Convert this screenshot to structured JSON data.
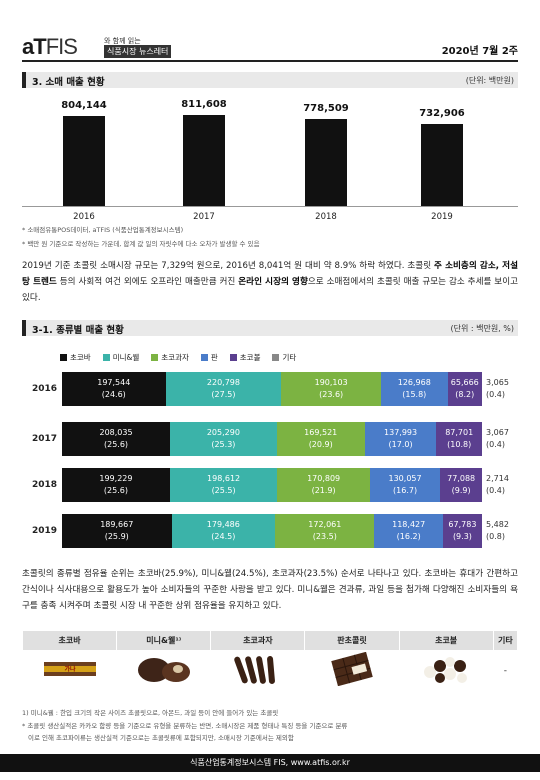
{
  "header": {
    "logo_a": "aT",
    "logo_fis": "FIS",
    "tagline": "와 함께 읽는",
    "newsletter": "식품시장 뉴스레터",
    "issue": "2020년 7월 2주"
  },
  "section3": {
    "title": "3. 소매 매출 현황",
    "unit": "(단위: 백만원)"
  },
  "chart_data": [
    {
      "type": "bar",
      "categories": [
        "2016",
        "2017",
        "2018",
        "2019"
      ],
      "values": [
        804144,
        811608,
        778509,
        732906
      ],
      "value_labels": [
        "804,144",
        "811,608",
        "778,509",
        "732,906"
      ]
    },
    {
      "type": "bar",
      "stacked": true,
      "orientation": "horizontal",
      "categories": [
        "2016",
        "2017",
        "2018",
        "2019"
      ],
      "series": [
        {
          "name": "초코바",
          "color": "#111111",
          "values": [
            197544,
            208035,
            199229,
            189667
          ],
          "labels": [
            "197,544",
            "208,035",
            "199,229",
            "189,667"
          ],
          "shares": [
            "(24.6)",
            "(25.6)",
            "(25.6)",
            "(25.9)"
          ]
        },
        {
          "name": "미니&웰",
          "color": "#3bb3a9",
          "values": [
            220798,
            205290,
            198612,
            179486
          ],
          "labels": [
            "220,798",
            "205,290",
            "198,612",
            "179,486"
          ],
          "shares": [
            "(27.5)",
            "(25.3)",
            "(25.5)",
            "(24.5)"
          ]
        },
        {
          "name": "초코과자",
          "color": "#7cb342",
          "values": [
            190103,
            169521,
            170809,
            172061
          ],
          "labels": [
            "190,103",
            "169,521",
            "170,809",
            "172,061"
          ],
          "shares": [
            "(23.6)",
            "(20.9)",
            "(21.9)",
            "(23.5)"
          ]
        },
        {
          "name": "판",
          "color": "#4a7cc9",
          "values": [
            126968,
            137993,
            130057,
            118427
          ],
          "labels": [
            "126,968",
            "137,993",
            "130,057",
            "118,427"
          ],
          "shares": [
            "(15.8)",
            "(17.0)",
            "(16.7)",
            "(16.2)"
          ]
        },
        {
          "name": "초코볼",
          "color": "#5b3f8f",
          "values": [
            65666,
            87701,
            77088,
            67783
          ],
          "labels": [
            "65,666",
            "87,701",
            "77,088",
            "67,783"
          ],
          "shares": [
            "(8.2)",
            "(10.8)",
            "(9.9)",
            "(9.3)"
          ]
        },
        {
          "name": "기타",
          "color": "#888888",
          "values": [
            3065,
            3067,
            2714,
            5482
          ],
          "labels": [
            "3,065",
            "3,067",
            "2,714",
            "5,482"
          ],
          "shares": [
            "(0.4)",
            "(0.4)",
            "(0.4)",
            "(0.8)"
          ]
        }
      ]
    }
  ],
  "notes1": [
    "* 소매점유통POS데이터, aTFIS (식품산업통계정보시스템)",
    "* 백만 원 기준으로 작성하는 가운데, 합계 값 일의 자릿수에 다소 오차가 발생할 수 있음"
  ],
  "para1": {
    "a": "2019년 기준 초콜릿 소매시장 규모는 7,329억 원으로, 2016년 8,041억 원 대비 약 8.9% 하락 하였다. 초콜릿 ",
    "b": "주 소비층의 감소, 저설탕 트렌드",
    "c": " 등의 사회적 여건 외에도 오프라인 매출만큼 커진 ",
    "d": "온라인 시장의 영향",
    "e": "으로 소매점에서의 초콜릿 매출 규모는 감소 추세를 보이고 있다."
  },
  "section31": {
    "title": "3-1. 종류별 매출 현황",
    "unit": "(단위 : 백만원, %)"
  },
  "para2": "초콜릿의 종류별 점유율 순위는 초코바(25.9%), 미니&웰(24.5%), 초코과자(23.5%) 순서로 나타나고 있다. 초코바는 휴대가 간편하고 간식이나 식사대용으로 활용도가 높아 소비자들의 꾸준한 사랑을 받고 있다. 미니&웰은 견과류, 과일 등을 첨가해 다양해진 소비자들의 욕구를 충족 시켜주며 초콜릿 시장 내 꾸준한 상위 점유율을 유지하고 있다.",
  "table": {
    "headers": [
      "초코바",
      "미니&웰¹⁾",
      "초코과자",
      "판초콜릿",
      "초코볼",
      "기타"
    ],
    "other_cell": "-"
  },
  "notes2": [
    "1) 미니&웰 : 한입 크기의 작은 사이즈 초콜릿으로, 아몬드, 과일 등이 안에 들어가 있는 초콜릿",
    "* 초콜릿 생산실적은 카카오 함량 등을 기준으로 유형을 분류하는 반면, 소매시장은 제품 형태나 특징 등을 기준으로 분류",
    "  이로 인해 초코파이류는 생산실적 기준으로는 초콜릿류에 포함되지만, 소매시장 기준에서는 제외함"
  ],
  "footer": "식품산업통계정보시스템 FIS, www.atfis.or.kr"
}
